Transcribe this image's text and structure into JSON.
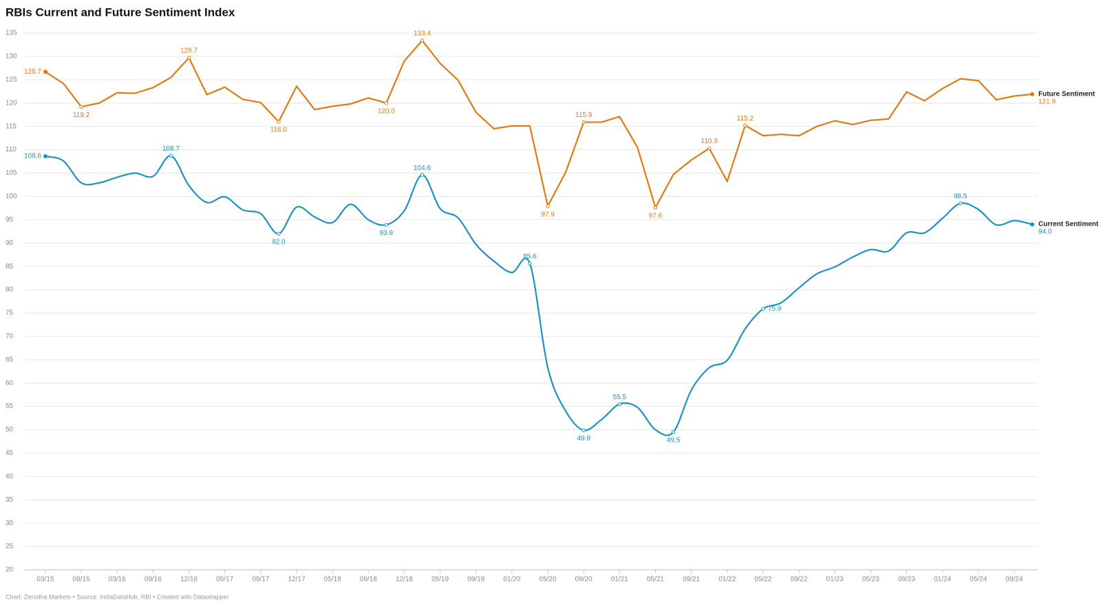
{
  "chart_data": {
    "type": "line",
    "title": "RBIs Current and Future Sentiment Index",
    "source": "Chart: Zerodha Markets • Source: IndiaDataHub, RBI • Created with Datawrapper",
    "categories": [
      "03/15",
      null,
      "09/15",
      null,
      "03/16",
      null,
      "09/16",
      null,
      "12/16",
      null,
      "05/17",
      null,
      "09/17",
      null,
      "12/17",
      null,
      "05/18",
      null,
      "09/18",
      null,
      "12/18",
      null,
      "05/19",
      null,
      "09/19",
      null,
      "01/20",
      null,
      "05/20",
      null,
      "09/20",
      null,
      "01/21",
      null,
      "05/21",
      null,
      "09/21",
      null,
      "01/22",
      null,
      "05/22",
      null,
      "09/22",
      null,
      "01/23",
      null,
      "05/23",
      null,
      "09/23",
      null,
      "01/24",
      null,
      "05/24",
      null,
      "09/24",
      null
    ],
    "ylim": [
      20,
      135
    ],
    "yticks": [
      20,
      25,
      30,
      35,
      40,
      45,
      50,
      55,
      60,
      65,
      70,
      75,
      80,
      85,
      90,
      95,
      100,
      105,
      110,
      115,
      120,
      125,
      130,
      135
    ],
    "grid": true,
    "series": [
      {
        "name": "Future Sentiment",
        "color": "#e07a10",
        "curve": "linear",
        "values": [
          126.7,
          124.2,
          119.2,
          120.0,
          122.2,
          122.1,
          123.3,
          125.5,
          129.7,
          121.8,
          123.4,
          120.8,
          120.1,
          116.0,
          123.6,
          118.6,
          119.3,
          119.8,
          121.1,
          120.0,
          129.0,
          133.4,
          128.5,
          124.9,
          118.0,
          114.5,
          115.1,
          115.1,
          97.9,
          105.2,
          115.9,
          115.9,
          117.1,
          110.5,
          97.6,
          104.7,
          107.8,
          110.3,
          103.2,
          115.2,
          113.0,
          113.3,
          113.0,
          115.0,
          116.2,
          115.4,
          116.3,
          116.6,
          122.4,
          120.5,
          123.1,
          125.2,
          124.8,
          120.7,
          121.5,
          121.9
        ],
        "value_labels": [
          "126.7",
          null,
          "119.2",
          null,
          null,
          null,
          null,
          null,
          "129.7",
          null,
          null,
          null,
          null,
          "116.0",
          null,
          null,
          null,
          null,
          null,
          "120.0",
          null,
          "133.4",
          null,
          null,
          null,
          null,
          null,
          null,
          "97.9",
          null,
          "115.9",
          null,
          null,
          null,
          "97.6",
          null,
          null,
          "110.3",
          null,
          "115.2",
          null,
          null,
          null,
          null,
          null,
          null,
          null,
          null,
          null,
          null,
          null,
          null,
          null,
          null,
          null,
          "121.9"
        ]
      },
      {
        "name": "Current Sentiment",
        "color": "#1a93c4",
        "curve": "smooth",
        "values": [
          108.6,
          107.6,
          102.9,
          102.9,
          104.1,
          105.0,
          104.3,
          108.7,
          102.3,
          98.7,
          99.9,
          97.1,
          96.3,
          92.0,
          97.7,
          95.6,
          94.4,
          98.3,
          95.0,
          93.9,
          96.9,
          104.6,
          97.4,
          95.4,
          89.7,
          86.1,
          83.7,
          85.6,
          63.3,
          54.0,
          49.9,
          52.2,
          55.5,
          54.8,
          50.0,
          49.5,
          58.5,
          63.3,
          64.9,
          71.6,
          75.9,
          77.2,
          80.4,
          83.4,
          84.9,
          87.0,
          88.6,
          88.3,
          92.2,
          92.2,
          95.3,
          98.5,
          97.2,
          93.9,
          94.8,
          94.0
        ],
        "value_labels": [
          "108.6",
          null,
          null,
          null,
          null,
          null,
          null,
          "108.7",
          null,
          null,
          null,
          null,
          null,
          "92.0",
          null,
          null,
          null,
          null,
          null,
          "93.9",
          null,
          "104.6",
          null,
          null,
          null,
          null,
          null,
          "85.6",
          null,
          null,
          "49.9",
          null,
          "55.5",
          null,
          null,
          "49.5",
          null,
          null,
          null,
          null,
          "75.9",
          null,
          null,
          null,
          null,
          null,
          null,
          null,
          null,
          null,
          null,
          "98.5",
          null,
          null,
          null,
          "94.0"
        ]
      }
    ]
  }
}
